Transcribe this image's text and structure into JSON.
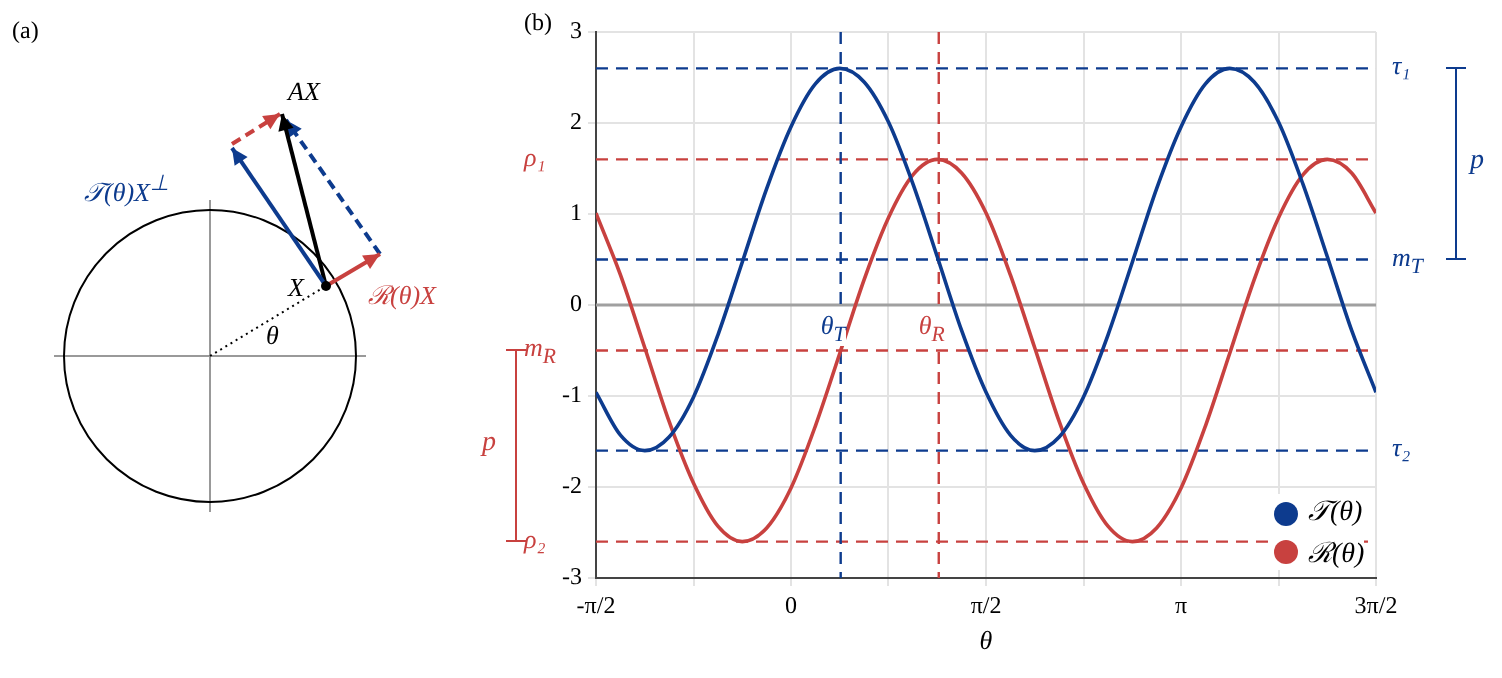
{
  "chart_data": [
    {
      "type": "other",
      "title": "(a)",
      "annotations": [
        "AX",
        "X",
        "θ",
        "𝒯(θ)X$^{⊥}$",
        "ℛ(θ)X"
      ]
    },
    {
      "type": "line",
      "title": "(b)",
      "xlabel": "θ",
      "legend": "bottom right",
      "marker": "none",
      "line_style": "solid",
      "grid": true,
      "x": [
        -1.571,
        -1.374,
        -1.178,
        -0.982,
        -0.785,
        -0.589,
        -0.393,
        -0.196,
        0,
        0.196,
        0.393,
        0.589,
        0.785,
        0.982,
        1.178,
        1.374,
        1.571,
        1.767,
        1.963,
        2.16,
        2.356,
        2.553,
        2.749,
        2.945,
        3.142,
        3.338,
        3.534,
        3.731,
        3.927,
        4.123,
        4.32,
        4.516,
        4.712
      ],
      "series": [
        {
          "name": "𝒯(θ)",
          "color": "#0d3b8e",
          "values": [
            -0.96,
            -1.43,
            -1.6,
            -1.45,
            -1.01,
            -0.33,
            0.47,
            1.28,
            1.96,
            2.43,
            2.6,
            2.45,
            2.01,
            1.33,
            0.53,
            -0.28,
            -0.96,
            -1.43,
            -1.6,
            -1.45,
            -1.01,
            -0.33,
            0.47,
            1.28,
            1.96,
            2.43,
            2.6,
            2.45,
            2.01,
            1.33,
            0.53,
            -0.28,
            -0.96
          ]
        },
        {
          "name": "ℛ(θ)",
          "color": "#c8413f",
          "values": [
            1.01,
            0.33,
            -0.47,
            -1.28,
            -1.96,
            -2.43,
            -2.6,
            -2.45,
            -2.01,
            -1.33,
            -0.53,
            0.28,
            0.96,
            1.43,
            1.6,
            1.45,
            1.01,
            0.33,
            -0.47,
            -1.28,
            -1.96,
            -2.43,
            -2.6,
            -2.45,
            -2.01,
            -1.33,
            -0.53,
            0.28,
            0.96,
            1.43,
            1.6,
            1.45,
            1.01
          ]
        }
      ],
      "xlim": [
        -1.571,
        4.712
      ],
      "xticks": [
        {
          "value": -1.571,
          "label": "-π/2"
        },
        {
          "value": -0.785,
          "label": null
        },
        {
          "value": 0,
          "label": "0"
        },
        {
          "value": 0.785,
          "label": null
        },
        {
          "value": 1.571,
          "label": "π/2"
        },
        {
          "value": 2.356,
          "label": null
        },
        {
          "value": 3.142,
          "label": "π"
        },
        {
          "value": 3.927,
          "label": null
        },
        {
          "value": 4.712,
          "label": "3π/2"
        }
      ],
      "ylim": [
        -3,
        3
      ],
      "yticks": [
        -3,
        -2,
        -1,
        0,
        1,
        2,
        3
      ],
      "ref_lines": [
        {
          "axis": "y",
          "value": 2.6,
          "label": "τ₁",
          "color": "#0d3b8e",
          "line_style": "dashed"
        },
        {
          "axis": "y",
          "value": 1.6,
          "label": "ρ₁",
          "color": "#c8413f",
          "line_style": "dashed"
        },
        {
          "axis": "y",
          "value": 0.5,
          "label": "m$_{T}$",
          "color": "#0d3b8e",
          "line_style": "dashed"
        },
        {
          "axis": "y",
          "value": 0,
          "color": "#a0a0a0",
          "line_style": "solid"
        },
        {
          "axis": "y",
          "value": -0.5,
          "label": "m$_{R}$",
          "color": "#c8413f",
          "line_style": "dashed"
        },
        {
          "axis": "y",
          "value": -1.6,
          "label": "τ₂",
          "color": "#0d3b8e",
          "line_style": "dashed"
        },
        {
          "axis": "y",
          "value": -2.6,
          "label": "ρ₂",
          "color": "#c8413f",
          "line_style": "dashed"
        },
        {
          "axis": "x",
          "value": 0.4,
          "label": "θ$_{T}$",
          "color": "#0d3b8e",
          "line_style": "dashed"
        },
        {
          "axis": "x",
          "value": 1.19,
          "label": "θ$_{R}$",
          "color": "#c8413f",
          "line_style": "dashed"
        }
      ],
      "annotations": [
        "p",
        "p"
      ]
    }
  ]
}
